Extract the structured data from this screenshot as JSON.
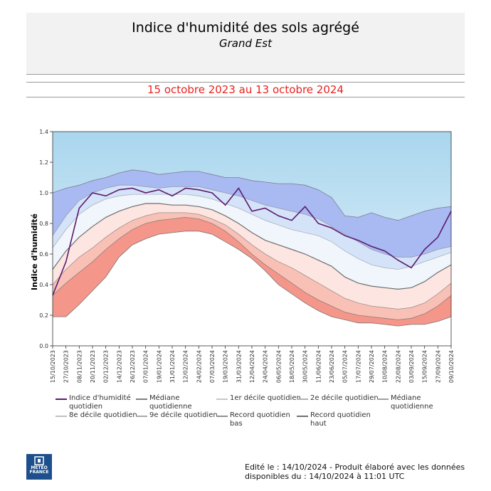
{
  "header": {
    "title": "Indice d'humidité des sols agrégé",
    "subtitle": "Grand Est",
    "period": "15 octobre 2023 au 13 octobre 2024"
  },
  "legend": {
    "items": [
      {
        "label": "Indice d'humidité quotidien",
        "color": "#5a1a6e"
      },
      {
        "label": "Médiane quotidienne",
        "color": "#808080"
      },
      {
        "label": "1er décile quotidien",
        "color": "#c8c8c8"
      },
      {
        "label": "2e décile quotidien",
        "color": "#b0b0b0"
      },
      {
        "label": "Médiane quotidienne",
        "color": "#a0a0a0"
      },
      {
        "label": "8e décile quotidien",
        "color": "#c0c0c0"
      },
      {
        "label": "9e décile quotidien",
        "color": "#a8a8a8"
      },
      {
        "label": "Record quotidien bas",
        "color": "#909090"
      },
      {
        "label": "Record quotidien haut",
        "color": "#707070"
      }
    ]
  },
  "footer": {
    "line1": "Edité le : 14/10/2024 - Produit élaboré avec les données",
    "line2": "disponibles du : 14/10/2024 à 11:01 UTC"
  },
  "logo": {
    "text": "MÉTÉO FRANCE"
  },
  "colors": {
    "title_period": "#e8231f",
    "sky_top": "#a9d6ee",
    "sky_bottom": "#eaf5fb",
    "band_high": "#a9b9f2",
    "band_mid_high": "#d5e3f9",
    "band_mid_low": "#fde6e1",
    "band_low": "#f9c1b6",
    "band_record_low": "#f4968a",
    "index_line": "#5a1a6e"
  },
  "chart_data": {
    "type": "area",
    "ylabel": "Indice d'humidité",
    "ylim": [
      0.0,
      1.4
    ],
    "yticks": [
      0.0,
      0.2,
      0.4,
      0.6,
      0.8,
      1.0,
      1.2,
      1.4
    ],
    "x_tick_labels": [
      "15/10/2023",
      "27/10/2023",
      "08/11/2023",
      "20/11/2023",
      "02/12/2023",
      "14/12/2023",
      "26/12/2023",
      "07/01/2024",
      "19/01/2024",
      "31/01/2024",
      "12/02/2024",
      "24/02/2024",
      "07/03/2024",
      "19/03/2024",
      "31/03/2024",
      "12/04/2024",
      "24/04/2024",
      "06/05/2024",
      "18/05/2024",
      "30/05/2024",
      "11/06/2024",
      "23/06/2024",
      "05/07/2024",
      "17/07/2024",
      "29/07/2024",
      "10/08/2024",
      "22/08/2024",
      "03/09/2024",
      "15/09/2024",
      "27/09/2024",
      "09/10/2024"
    ],
    "x": [
      "15/10",
      "27/10",
      "08/11",
      "20/11",
      "02/12",
      "14/12",
      "26/12",
      "07/01",
      "19/01",
      "31/01",
      "12/02",
      "24/02",
      "07/03",
      "19/03",
      "31/03",
      "12/04",
      "24/04",
      "06/05",
      "18/05",
      "30/05",
      "11/06",
      "23/06",
      "05/07",
      "17/07",
      "29/07",
      "10/08",
      "22/08",
      "03/09",
      "15/09",
      "27/09",
      "09/10"
    ],
    "series": [
      {
        "name": "Record quotidien haut",
        "values": [
          1.0,
          1.03,
          1.05,
          1.08,
          1.1,
          1.13,
          1.15,
          1.14,
          1.12,
          1.13,
          1.14,
          1.14,
          1.12,
          1.1,
          1.1,
          1.08,
          1.07,
          1.06,
          1.06,
          1.05,
          1.02,
          0.97,
          0.85,
          0.84,
          0.87,
          0.84,
          0.82,
          0.85,
          0.88,
          0.9,
          0.91
        ]
      },
      {
        "name": "9e décile quotidien",
        "values": [
          0.72,
          0.85,
          0.95,
          1.0,
          1.03,
          1.05,
          1.05,
          1.04,
          1.03,
          1.04,
          1.04,
          1.04,
          1.02,
          1.0,
          0.98,
          0.95,
          0.92,
          0.9,
          0.88,
          0.86,
          0.83,
          0.78,
          0.73,
          0.68,
          0.63,
          0.6,
          0.58,
          0.58,
          0.6,
          0.63,
          0.65
        ]
      },
      {
        "name": "8e décile quotidien",
        "values": [
          0.64,
          0.76,
          0.86,
          0.92,
          0.96,
          0.98,
          0.99,
          0.99,
          0.99,
          0.99,
          0.99,
          0.98,
          0.96,
          0.93,
          0.9,
          0.86,
          0.82,
          0.79,
          0.76,
          0.74,
          0.72,
          0.68,
          0.62,
          0.57,
          0.53,
          0.51,
          0.5,
          0.52,
          0.55,
          0.58,
          0.61
        ]
      },
      {
        "name": "Médiane quotidienne",
        "values": [
          0.5,
          0.62,
          0.71,
          0.78,
          0.84,
          0.88,
          0.91,
          0.93,
          0.93,
          0.92,
          0.92,
          0.91,
          0.89,
          0.85,
          0.8,
          0.74,
          0.69,
          0.66,
          0.63,
          0.6,
          0.56,
          0.52,
          0.45,
          0.41,
          0.39,
          0.38,
          0.37,
          0.38,
          0.42,
          0.48,
          0.53
        ]
      },
      {
        "name": "2e décile quotidien",
        "values": [
          0.4,
          0.5,
          0.58,
          0.64,
          0.71,
          0.77,
          0.82,
          0.85,
          0.87,
          0.87,
          0.87,
          0.86,
          0.83,
          0.79,
          0.73,
          0.66,
          0.6,
          0.55,
          0.51,
          0.46,
          0.41,
          0.36,
          0.31,
          0.28,
          0.26,
          0.25,
          0.24,
          0.25,
          0.28,
          0.34,
          0.41
        ]
      },
      {
        "name": "1er décile quotidien",
        "values": [
          0.33,
          0.41,
          0.48,
          0.55,
          0.63,
          0.7,
          0.76,
          0.8,
          0.82,
          0.83,
          0.84,
          0.83,
          0.8,
          0.75,
          0.68,
          0.6,
          0.53,
          0.47,
          0.41,
          0.35,
          0.3,
          0.26,
          0.22,
          0.2,
          0.19,
          0.18,
          0.17,
          0.18,
          0.21,
          0.26,
          0.33
        ]
      },
      {
        "name": "Record quotidien bas",
        "values": [
          0.19,
          0.19,
          0.27,
          0.36,
          0.45,
          0.58,
          0.66,
          0.7,
          0.73,
          0.74,
          0.75,
          0.75,
          0.73,
          0.68,
          0.63,
          0.57,
          0.49,
          0.4,
          0.34,
          0.28,
          0.23,
          0.19,
          0.17,
          0.15,
          0.15,
          0.14,
          0.13,
          0.14,
          0.14,
          0.16,
          0.19
        ]
      },
      {
        "name": "Indice d'humidité quotidien",
        "values": [
          0.33,
          0.55,
          0.9,
          1.0,
          0.98,
          1.02,
          1.03,
          1.0,
          1.02,
          0.98,
          1.03,
          1.02,
          1.0,
          0.92,
          1.03,
          0.88,
          0.9,
          0.85,
          0.82,
          0.91,
          0.8,
          0.77,
          0.72,
          0.69,
          0.65,
          0.62,
          0.56,
          0.51,
          0.63,
          0.71,
          0.88
        ]
      }
    ]
  }
}
